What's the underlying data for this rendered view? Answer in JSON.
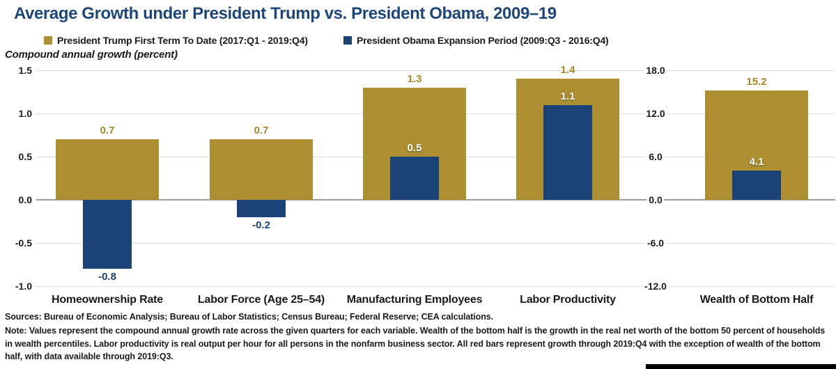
{
  "title": "Average Growth under President Trump vs. President Obama, 2009–19",
  "subtitle": "Compound annual growth (percent)",
  "legend": [
    {
      "label": "President Trump First Term To Date (2017:Q1 - 2019:Q4)",
      "color": "#AD8F31"
    },
    {
      "label": "President Obama Expansion Period (2009:Q3 - 2016:Q4)",
      "color": "#1C4377"
    }
  ],
  "chart_data": {
    "type": "bar",
    "categories": [
      "Homeownership Rate",
      "Labor Force (Age 25–54)",
      "Manufacturing Employees",
      "Labor Productivity",
      "Wealth of Bottom Half"
    ],
    "series": [
      {
        "name": "President Trump First Term To Date (2017:Q1 - 2019:Q4)",
        "color": "#AD8F31",
        "values": [
          0.7,
          0.7,
          1.3,
          1.4,
          15.2
        ]
      },
      {
        "name": "President Obama Expansion Period (2009:Q3 - 2016:Q4)",
        "color": "#1C4377",
        "values": [
          -0.8,
          -0.2,
          0.5,
          1.1,
          4.1
        ]
      }
    ],
    "value_labels": {
      "trump": [
        "0.7",
        "0.7",
        "1.3",
        "1.4",
        "15.2"
      ],
      "obama": [
        "-0.8",
        "-0.2",
        "0.5",
        "1.1",
        "4.1"
      ]
    },
    "axes": {
      "left": {
        "ticks": [
          "1.5",
          "1.0",
          "0.5",
          "0.0",
          "-0.5",
          "-1.0"
        ],
        "range": [
          -1.0,
          1.5
        ],
        "applies_to": [
          "Homeownership Rate",
          "Labor Force (Age 25–54)",
          "Manufacturing Employees",
          "Labor Productivity"
        ]
      },
      "right": {
        "ticks": [
          "18.0",
          "12.0",
          "6.0",
          "0.0",
          "-6.0",
          "-12.0"
        ],
        "range": [
          -12.0,
          18.0
        ],
        "applies_to": [
          "Wealth of Bottom Half"
        ]
      }
    },
    "grid": true,
    "legend_position": "top-left"
  },
  "footer": {
    "sources": "Sources: Bureau of Economic Analysis; Bureau of Labor Statistics; Census Bureau; Federal Reserve; CEA calculations.",
    "note": "Note: Values represent the compound annual growth rate across the given quarters for each variable. Wealth of the bottom half is the growth in the real net worth of the bottom 50 percent of households in wealth percentiles. Labor productivity is real output per hour for all persons in the nonfarm business sector. All red bars represent growth through 2019:Q4 with the exception of wealth of the bottom half, with data available through 2019:Q3."
  },
  "colors": {
    "title": "#1E4679",
    "trump_gold": "#AD8F31",
    "obama_navy": "#1C4377",
    "gold_label_text": "#A6872A",
    "white_label_text": "#FFFFFF",
    "gridline": "#DEDEDE",
    "zero_line": "#9B9B9B",
    "text": "#1A1A1A",
    "footer_bar": "#000000"
  }
}
